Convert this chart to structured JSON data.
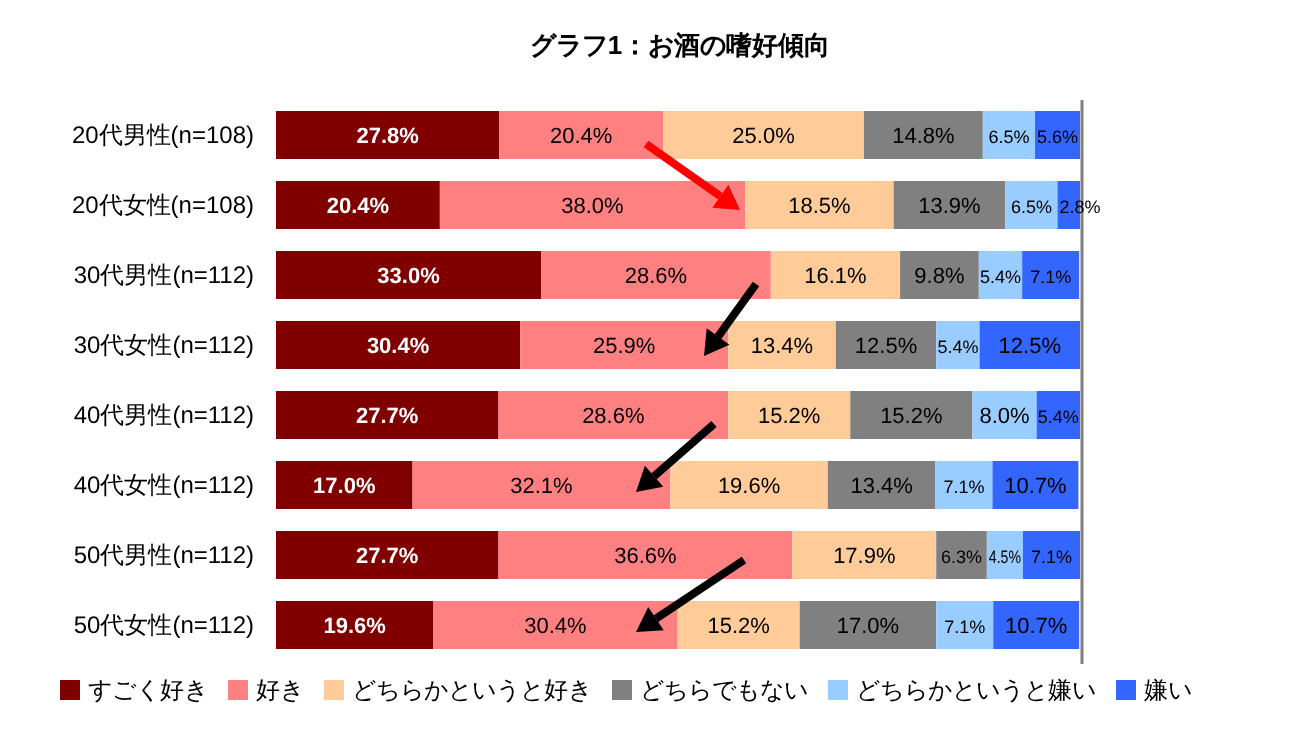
{
  "chart_data": {
    "type": "bar",
    "orientation": "horizontal",
    "stacked": true,
    "title": "グラフ1：お酒の嗜好傾向",
    "tick_labels": "y",
    "legend": "bottom",
    "categories": [
      "20代男性(n=108)",
      "20代女性(n=108)",
      "30代男性(n=112)",
      "30代女性(n=112)",
      "40代男性(n=112)",
      "40代女性(n=112)",
      "50代男性(n=112)",
      "50代女性(n=112)"
    ],
    "series": [
      {
        "name": "すごく好き",
        "color": "#800000",
        "values": [
          27.8,
          20.4,
          33.0,
          30.4,
          27.7,
          17.0,
          27.7,
          19.6
        ],
        "value_labels": [
          "27.8%",
          "20.4%",
          "33.0%",
          "30.4%",
          "27.7%",
          "17.0%",
          "27.7%",
          "19.6%"
        ]
      },
      {
        "name": "好き",
        "color": "#ff8080",
        "values": [
          20.4,
          38.0,
          28.6,
          25.9,
          28.6,
          32.1,
          36.6,
          30.4
        ],
        "value_labels": [
          "20.4%",
          "38.0%",
          "28.6%",
          "25.9%",
          "28.6%",
          "32.1%",
          "36.6%",
          "30.4%"
        ]
      },
      {
        "name": "どちらかというと好き",
        "color": "#ffcc99",
        "values": [
          25.0,
          18.5,
          16.1,
          13.4,
          15.2,
          19.6,
          17.9,
          15.2
        ],
        "value_labels": [
          "25.0%",
          "18.5%",
          "16.1%",
          "13.4%",
          "15.2%",
          "19.6%",
          "17.9%",
          "15.2%"
        ]
      },
      {
        "name": "どちらでもない",
        "color": "#808080",
        "values": [
          14.8,
          13.9,
          9.8,
          12.5,
          15.2,
          13.4,
          6.3,
          17.0
        ],
        "value_labels": [
          "14.8%",
          "13.9%",
          "9.8%",
          "12.5%",
          "15.2%",
          "13.4%",
          "6.3%",
          "17.0%"
        ]
      },
      {
        "name": "どちらかというと嫌い",
        "color": "#99ccff",
        "values": [
          6.5,
          6.5,
          5.4,
          5.4,
          8.0,
          7.1,
          4.5,
          7.1
        ],
        "value_labels": [
          "6.5%",
          "6.5%",
          "5.4%",
          "5.4%",
          "8.0%",
          "7.1%",
          "4.5%",
          "7.1%"
        ]
      },
      {
        "name": "嫌い",
        "color": "#3366ff",
        "values": [
          5.6,
          2.8,
          7.1,
          12.5,
          5.4,
          10.7,
          7.1,
          10.7
        ],
        "value_labels": [
          "5.6%",
          "2.8%",
          "7.1%",
          "12.5%",
          "5.4%",
          "10.7%",
          "7.1%",
          "10.7%"
        ]
      }
    ]
  }
}
